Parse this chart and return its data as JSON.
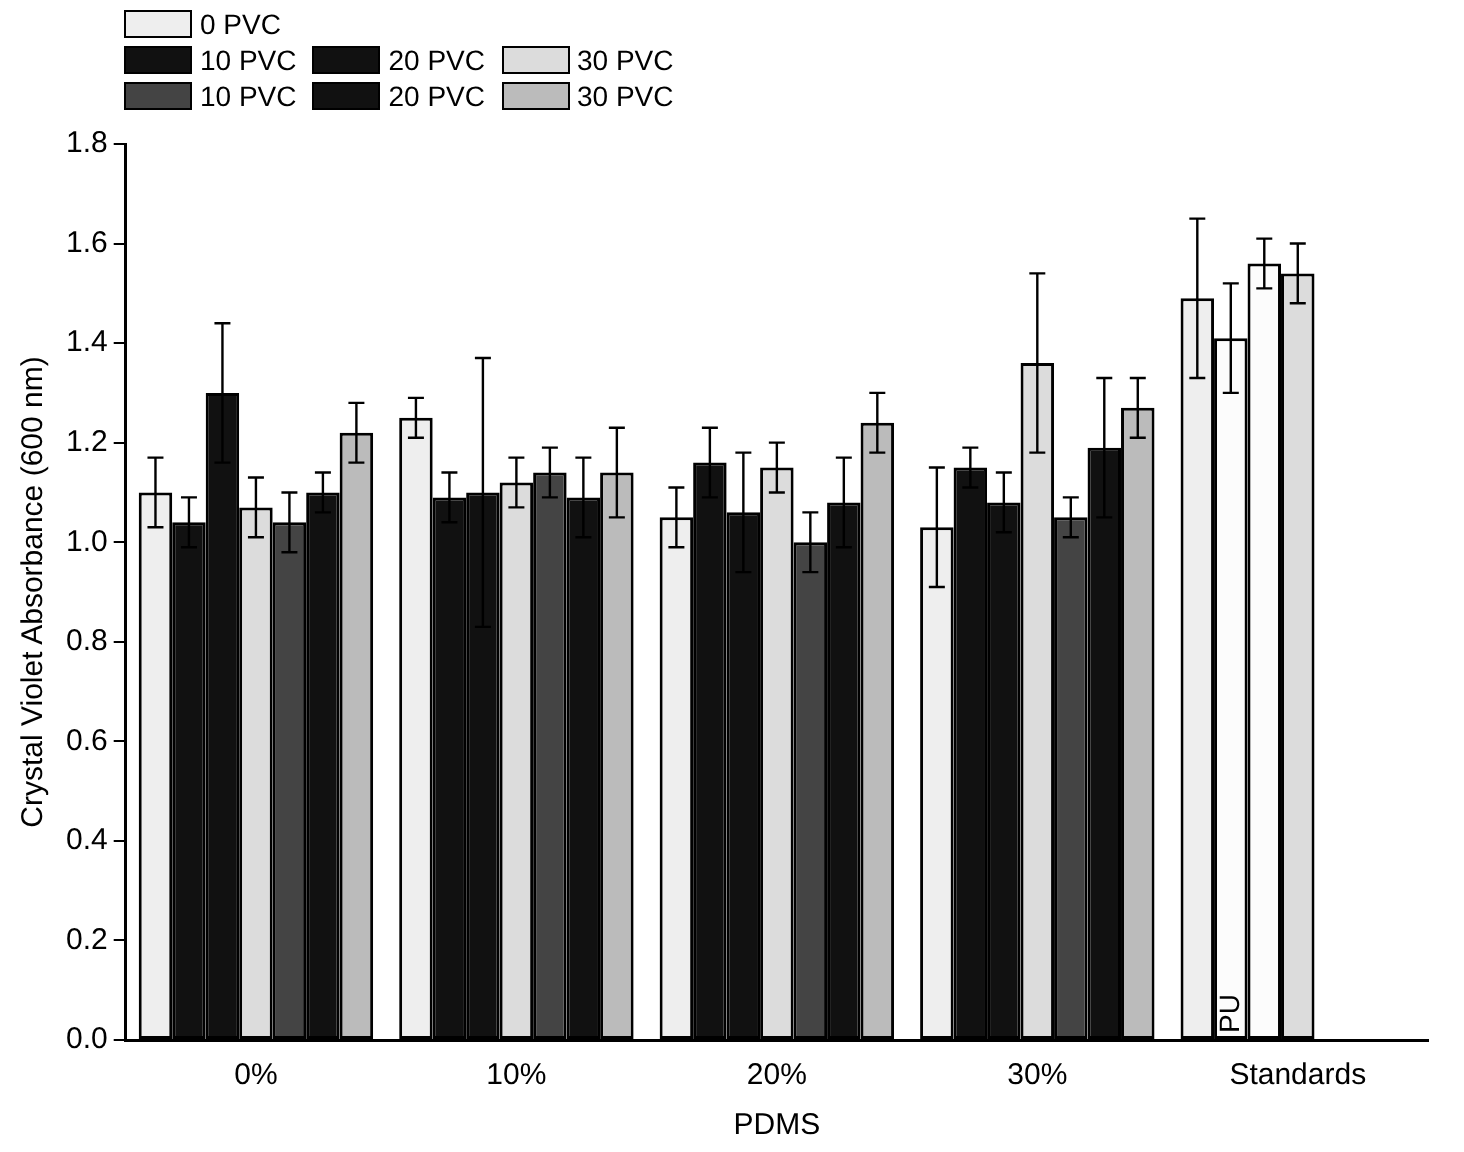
{
  "chart_data": {
    "type": "bar",
    "xlabel": "PDMS",
    "ylabel": "Crystal Violet Absorbance (600 nm)",
    "categories": [
      "0%",
      "10%",
      "20%",
      "30%",
      "Standards"
    ],
    "ylim": [
      0,
      1.8
    ],
    "yticks": [
      {
        "value": 0,
        "label": "0.0"
      },
      {
        "value": 0.2,
        "label": "0.2"
      },
      {
        "value": 0.4,
        "label": "0.4"
      },
      {
        "value": 0.6,
        "label": "0.6"
      },
      {
        "value": 0.8,
        "label": "0.8"
      },
      {
        "value": 1,
        "label": "1.0"
      },
      {
        "value": 1.2,
        "label": "1.2"
      },
      {
        "value": 1.4,
        "label": "1.4"
      },
      {
        "value": 1.6,
        "label": "1.6"
      },
      {
        "value": 1.8,
        "label": "1.8"
      }
    ],
    "legend": "top",
    "grid": false,
    "series": [
      {
        "name": "0 PVC",
        "color": "#eeeeee",
        "values": [
          1.1,
          1.25,
          1.05,
          1.03,
          1.49
        ],
        "errors": [
          0.07,
          0.04,
          0.06,
          0.12,
          0.16
        ]
      },
      {
        "name": "10 PVC",
        "color": "#111111",
        "colors": [
          "#111111",
          "#111111",
          "#111111",
          "#111111",
          "#fcfcfc"
        ],
        "values": [
          1.04,
          1.09,
          1.16,
          1.15,
          1.41
        ],
        "errors": [
          0.05,
          0.05,
          0.07,
          0.04,
          0.11
        ],
        "value_labels": [
          null,
          null,
          null,
          null,
          "PU"
        ]
      },
      {
        "name": "20 PVC",
        "color": "#111111",
        "colors": [
          "#111111",
          "#111111",
          "#111111",
          "#111111",
          "#fcfcfc"
        ],
        "values": [
          1.3,
          1.1,
          1.06,
          1.08,
          1.56
        ],
        "errors": [
          0.14,
          0.27,
          0.12,
          0.06,
          0.05
        ]
      },
      {
        "name": "30 PVC",
        "color": "#dcdcdc",
        "values": [
          1.07,
          1.12,
          1.15,
          1.36,
          1.54
        ],
        "errors": [
          0.06,
          0.05,
          0.05,
          0.18,
          0.06
        ]
      },
      {
        "name": "10 PVC",
        "color": "#444444",
        "values": [
          1.04,
          1.14,
          1.0,
          1.05,
          null
        ],
        "errors": [
          0.06,
          0.05,
          0.06,
          0.04,
          null
        ]
      },
      {
        "name": "20 PVC",
        "color": "#111111",
        "values": [
          1.1,
          1.09,
          1.08,
          1.19,
          null
        ],
        "errors": [
          0.04,
          0.08,
          0.09,
          0.14,
          null
        ]
      },
      {
        "name": "30 PVC",
        "color": "#bbbbbb",
        "values": [
          1.22,
          1.14,
          1.24,
          1.27,
          null
        ],
        "errors": [
          0.06,
          0.09,
          0.06,
          0.06,
          null
        ]
      }
    ]
  }
}
